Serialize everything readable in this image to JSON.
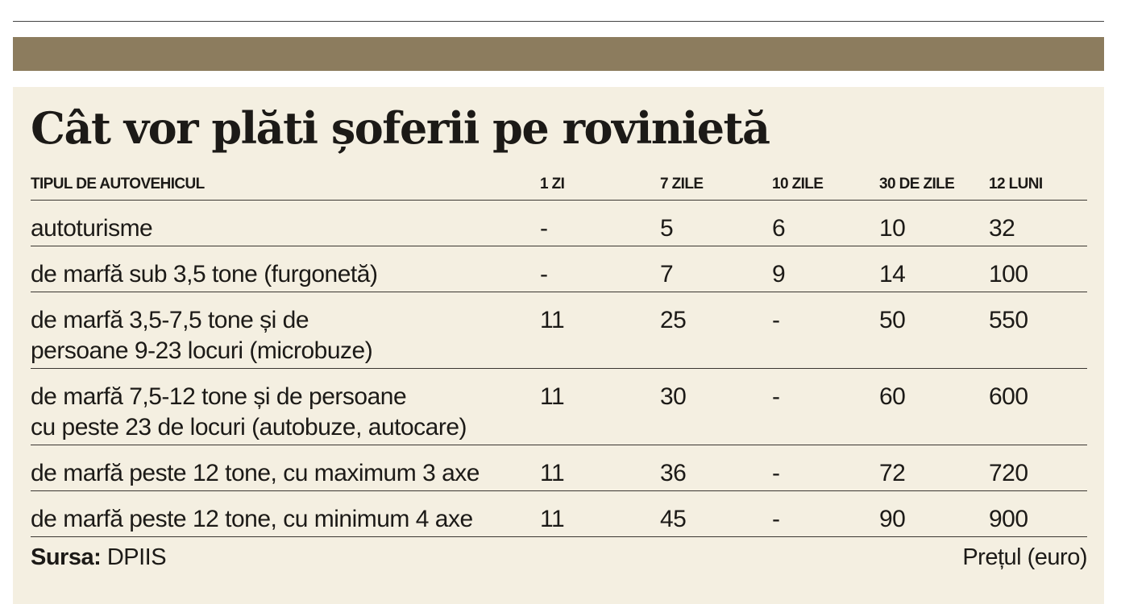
{
  "colors": {
    "band": "#8c7c5e",
    "panel": "#f4efe1",
    "text": "#1c1a17"
  },
  "title": "Cât vor plăti șoferii pe rovinietă",
  "table": {
    "headers": [
      "TIPUL DE AUTOVEHICUL",
      "1 ZI",
      "7 ZILE",
      "10 ZILE",
      "30 DE ZILE",
      "12 LUNI"
    ],
    "rows": [
      [
        "autoturisme",
        "-",
        "5",
        "6",
        "10",
        "32"
      ],
      [
        "de marfă sub 3,5 tone (furgonetă)",
        "-",
        "7",
        "9",
        "14",
        "100"
      ],
      [
        "de marfă 3,5-7,5 tone și de\npersoane 9-23 locuri (microbuze)",
        "11",
        "25",
        "-",
        "50",
        "550"
      ],
      [
        "de marfă 7,5-12 tone și de persoane\ncu peste 23 de locuri (autobuze, autocare)",
        "11",
        "30",
        "-",
        "60",
        "600"
      ],
      [
        "de marfă peste 12 tone, cu maximum 3 axe",
        "11",
        "36",
        "-",
        "72",
        "720"
      ],
      [
        "de marfă peste 12 tone, cu minimum 4 axe",
        "11",
        "45",
        "-",
        "90",
        "900"
      ]
    ]
  },
  "footer": {
    "source_label": "Sursa:",
    "source_value": " DPIIS",
    "unit_note": "Prețul (euro)"
  }
}
